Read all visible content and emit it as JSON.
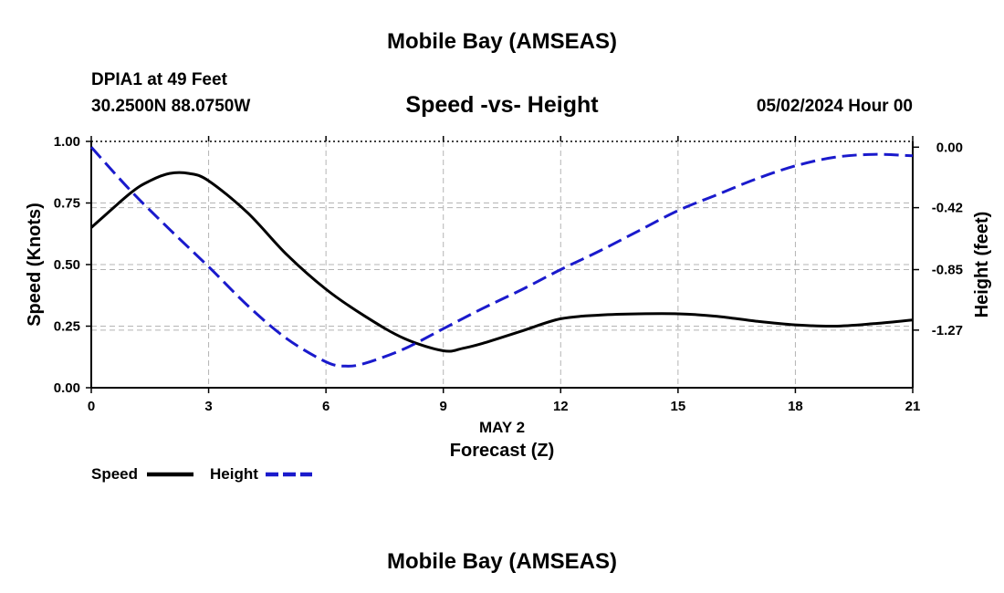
{
  "header": {
    "title": "Mobile Bay (AMSEAS)",
    "station": "DPIA1 at 49 Feet",
    "coords": "30.2500N  88.0750W",
    "subtitle": "Speed -vs- Height",
    "datetime": "05/02/2024 Hour 00"
  },
  "footer": {
    "title": "Mobile Bay (AMSEAS)"
  },
  "colors": {
    "speed": "#000000",
    "height": "#1a1acc",
    "grid": "#b4b4b4"
  },
  "chart_data": {
    "type": "line",
    "title": "Speed -vs- Height",
    "xlabel": "Forecast (Z)",
    "xlabel_date": "MAY 2",
    "ylabel_left": "Speed (Knots)",
    "ylabel_right": "Height (feet)",
    "xlim": [
      0,
      21
    ],
    "ylim_left": [
      0,
      1
    ],
    "ylim_right": [
      -1.67,
      0.04
    ],
    "x_ticks": [
      "0",
      "3",
      "6",
      "9",
      "12",
      "15",
      "18",
      "21"
    ],
    "x_tick_values": [
      0,
      3,
      6,
      9,
      12,
      15,
      18,
      21
    ],
    "y_left_ticks": [
      "0.00",
      "0.25",
      "0.50",
      "0.75",
      "1.00"
    ],
    "y_left_tick_values": [
      0,
      0.25,
      0.5,
      0.75,
      1.0
    ],
    "y_right_ticks": [
      "0.00",
      "-0.42",
      "-0.85",
      "-1.27"
    ],
    "y_right_tick_values": [
      0,
      -0.42,
      -0.85,
      -1.27
    ],
    "legend": [
      {
        "name": "Speed",
        "style": "solid"
      },
      {
        "name": "Height",
        "style": "dashed"
      }
    ],
    "series": [
      {
        "name": "Speed",
        "axis": "left",
        "style": "solid",
        "x": [
          0,
          1,
          1.5,
          2,
          2.5,
          3,
          4,
          5,
          6,
          7,
          8,
          9,
          9.5,
          10,
          11,
          12,
          13,
          14,
          15,
          16,
          17,
          18,
          19,
          20,
          21
        ],
        "values": [
          0.65,
          0.79,
          0.84,
          0.87,
          0.87,
          0.84,
          0.71,
          0.54,
          0.4,
          0.29,
          0.2,
          0.15,
          0.16,
          0.18,
          0.23,
          0.28,
          0.295,
          0.3,
          0.3,
          0.29,
          0.27,
          0.255,
          0.25,
          0.26,
          0.275
        ]
      },
      {
        "name": "Height",
        "axis": "right",
        "style": "dashed",
        "x": [
          0,
          1,
          2,
          3,
          4,
          5,
          6,
          6.5,
          7,
          8,
          9,
          10,
          11,
          12,
          13,
          14,
          15,
          16,
          17,
          18,
          19,
          20,
          21
        ],
        "values": [
          0,
          -0.3,
          -0.57,
          -0.83,
          -1.1,
          -1.33,
          -1.49,
          -1.52,
          -1.5,
          -1.4,
          -1.26,
          -1.12,
          -0.99,
          -0.85,
          -0.72,
          -0.58,
          -0.44,
          -0.33,
          -0.22,
          -0.13,
          -0.07,
          -0.05,
          -0.06
        ]
      }
    ]
  }
}
